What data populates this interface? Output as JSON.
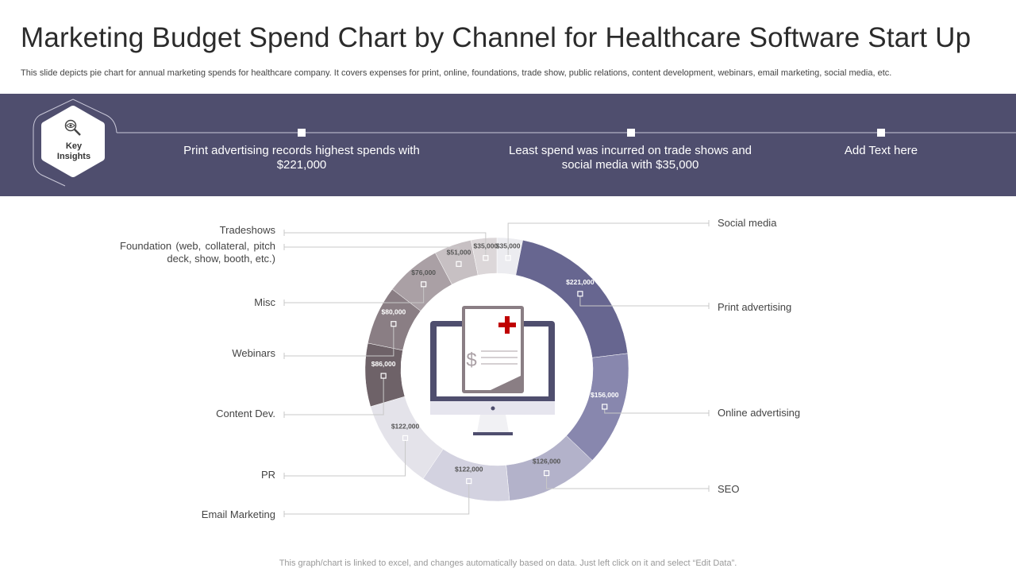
{
  "header": {
    "title": "Marketing Budget Spend Chart by Channel for Healthcare Software Start Up",
    "subtitle": "This slide depicts pie chart for annual marketing spends for healthcare company. It covers expenses for print, online, foundations, trade show, public relations, content development, webinars, email marketing, social media, etc."
  },
  "insights": {
    "badge_line1": "Key",
    "badge_line2": "Insights",
    "items": [
      "Print advertising records highest spends with $221,000",
      "Least spend was incurred on trade shows and social media with $35,000",
      "Add Text here"
    ]
  },
  "colors": {
    "band": "#4f4e6e",
    "red_cross": "#c00000"
  },
  "chart_data": {
    "type": "pie",
    "style": "donut",
    "categories": [
      "Social media",
      "Print advertising",
      "Online advertising",
      "SEO",
      "Email Marketing",
      "PR",
      "Content Dev.",
      "Webinars",
      "Misc",
      "Foundation (web, collateral, pitch deck, show, booth, etc.)",
      "Tradeshows"
    ],
    "values": [
      35000,
      221000,
      156000,
      126000,
      122000,
      122000,
      86000,
      80000,
      76000,
      51000,
      35000
    ],
    "value_labels": [
      "$35,000",
      "$221,000",
      "$156,000",
      "$126,000",
      "$122,000",
      "$122,000",
      "$86,000",
      "$80,000",
      "$76,000",
      "$51,000",
      "$35,000"
    ],
    "colors": [
      "#ececf0",
      "#676690",
      "#8887ae",
      "#b3b2ca",
      "#d3d2e0",
      "#e4e3ea",
      "#6e6268",
      "#8a7e84",
      "#aaa0a5",
      "#c7c0c3",
      "#dcd7d9"
    ]
  },
  "footer": "This graph/chart is linked to excel, and changes automatically based on data. Just left click on it and select “Edit Data”."
}
